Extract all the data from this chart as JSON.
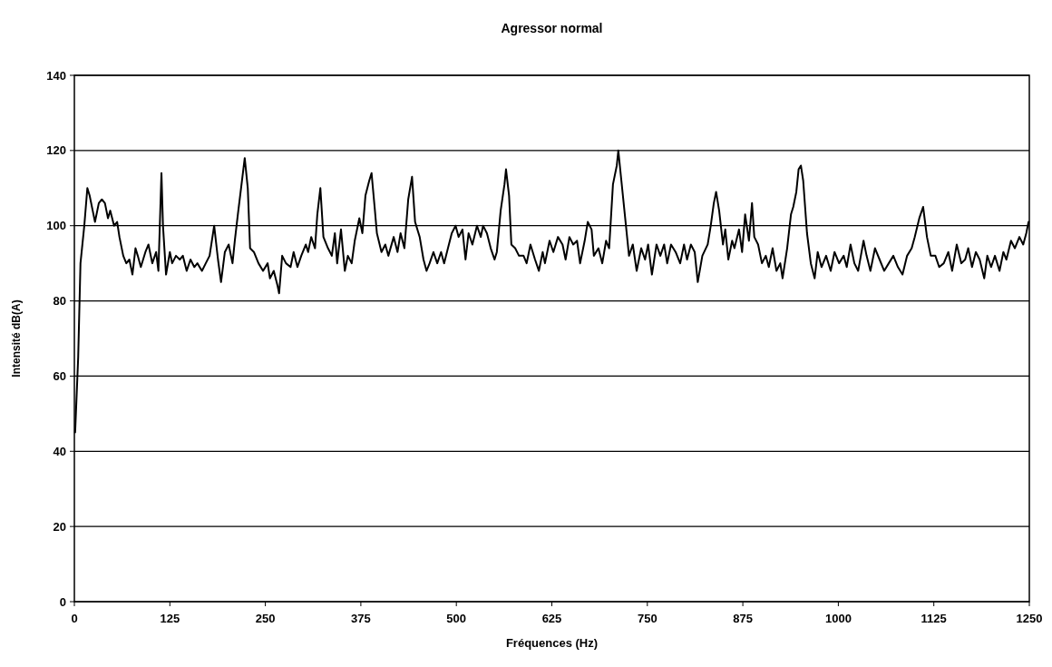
{
  "chart_data": {
    "type": "line",
    "title": "Agressor normal",
    "xlabel": "Fréquences (Hz)",
    "ylabel": "Intensité dB(A)",
    "xlim": [
      0,
      1250
    ],
    "xticks": [
      0,
      125,
      250,
      375,
      500,
      625,
      750,
      875,
      1000,
      1125,
      1250
    ],
    "ylim": [
      0,
      140
    ],
    "yticks": [
      0,
      20,
      40,
      60,
      80,
      100,
      120,
      140
    ],
    "grid": "y",
    "marker": "none",
    "line_style": "solid",
    "series": [
      {
        "color": "#000000",
        "x": [
          1,
          5,
          8,
          13,
          17,
          20,
          24,
          27,
          32,
          36,
          40,
          44,
          47,
          52,
          56,
          59,
          64,
          68,
          72,
          76,
          80,
          83,
          87,
          93,
          97,
          102,
          107,
          110,
          114,
          116,
          120,
          125,
          128,
          133,
          138,
          142,
          147,
          152,
          157,
          161,
          167,
          172,
          177,
          183,
          188,
          192,
          197,
          202,
          207,
          210,
          214,
          220,
          223,
          227,
          230,
          235,
          241,
          247,
          253,
          256,
          261,
          266,
          268,
          272,
          277,
          283,
          287,
          292,
          297,
          303,
          306,
          310,
          315,
          318,
          322,
          326,
          332,
          337,
          341,
          344,
          349,
          354,
          358,
          363,
          367,
          373,
          377,
          381,
          386,
          389,
          393,
          396,
          402,
          407,
          411,
          418,
          423,
          427,
          432,
          437,
          442,
          446,
          452,
          457,
          461,
          465,
          470,
          475,
          480,
          484,
          489,
          494,
          499,
          503,
          508,
          512,
          516,
          521,
          527,
          532,
          535,
          540,
          545,
          550,
          553,
          558,
          563,
          565,
          569,
          572,
          577,
          582,
          588,
          592,
          597,
          603,
          608,
          613,
          616,
          622,
          627,
          633,
          639,
          643,
          648,
          653,
          658,
          662,
          668,
          672,
          677,
          680,
          686,
          691,
          696,
          700,
          705,
          710,
          712,
          716,
          722,
          726,
          731,
          736,
          742,
          747,
          751,
          756,
          762,
          767,
          772,
          776,
          781,
          787,
          793,
          798,
          802,
          807,
          812,
          816,
          822,
          829,
          833,
          837,
          840,
          844,
          849,
          852,
          856,
          861,
          864,
          870,
          874,
          878,
          883,
          887,
          890,
          895,
          900,
          905,
          909,
          914,
          919,
          924,
          927,
          933,
          938,
          941,
          945,
          948,
          951,
          954,
          959,
          964,
          969,
          973,
          978,
          984,
          990,
          995,
          1001,
          1007,
          1011,
          1016,
          1021,
          1026,
          1033,
          1037,
          1042,
          1048,
          1054,
          1060,
          1066,
          1072,
          1078,
          1084,
          1090,
          1096,
          1100,
          1106,
          1111,
          1116,
          1121,
          1127,
          1132,
          1138,
          1144,
          1149,
          1155,
          1161,
          1166,
          1170,
          1175,
          1180,
          1185,
          1191,
          1195,
          1200,
          1205,
          1211,
          1216,
          1220,
          1226,
          1231,
          1237,
          1242,
          1246,
          1249
        ],
        "values": [
          45,
          65,
          90,
          100,
          110,
          108,
          104,
          101,
          106,
          107,
          106,
          102,
          104,
          100,
          101,
          97,
          92,
          90,
          91,
          87,
          94,
          92,
          89,
          93,
          95,
          90,
          93,
          88,
          114,
          100,
          87,
          93,
          90,
          92,
          91,
          92,
          88,
          91,
          89,
          90,
          88,
          90,
          92,
          100,
          91,
          85,
          93,
          95,
          90,
          96,
          103,
          113,
          118,
          110,
          94,
          93,
          90,
          88,
          90,
          86,
          88,
          84,
          82,
          92,
          90,
          89,
          93,
          89,
          92,
          95,
          93,
          97,
          94,
          103,
          110,
          97,
          94,
          92,
          98,
          90,
          99,
          88,
          92,
          90,
          96,
          102,
          98,
          108,
          112,
          114,
          105,
          98,
          93,
          95,
          92,
          97,
          93,
          98,
          94,
          107,
          113,
          101,
          97,
          91,
          88,
          90,
          93,
          90,
          93,
          90,
          94,
          98,
          100,
          97,
          99,
          91,
          98,
          95,
          100,
          97,
          100,
          98,
          94,
          91,
          93,
          104,
          111,
          115,
          108,
          95,
          94,
          92,
          92,
          90,
          95,
          91,
          88,
          93,
          90,
          96,
          93,
          97,
          95,
          91,
          97,
          95,
          96,
          90,
          96,
          101,
          99,
          92,
          94,
          90,
          96,
          94,
          111,
          116,
          120,
          112,
          100,
          92,
          95,
          88,
          94,
          91,
          95,
          87,
          95,
          92,
          95,
          90,
          95,
          93,
          90,
          95,
          91,
          95,
          93,
          85,
          92,
          95,
          100,
          106,
          109,
          104,
          95,
          99,
          91,
          96,
          94,
          99,
          93,
          103,
          96,
          106,
          97,
          95,
          90,
          92,
          89,
          94,
          88,
          90,
          86,
          94,
          103,
          105,
          109,
          115,
          116,
          112,
          98,
          90,
          86,
          93,
          89,
          92,
          88,
          93,
          90,
          92,
          89,
          95,
          90,
          88,
          96,
          92,
          88,
          94,
          91,
          88,
          90,
          92,
          89,
          87,
          92,
          94,
          97,
          102,
          105,
          97,
          92,
          92,
          89,
          90,
          93,
          88,
          95,
          90,
          91,
          94,
          89,
          93,
          91,
          86,
          92,
          89,
          92,
          88,
          93,
          91,
          96,
          94,
          97,
          95,
          98,
          101
        ]
      }
    ]
  }
}
